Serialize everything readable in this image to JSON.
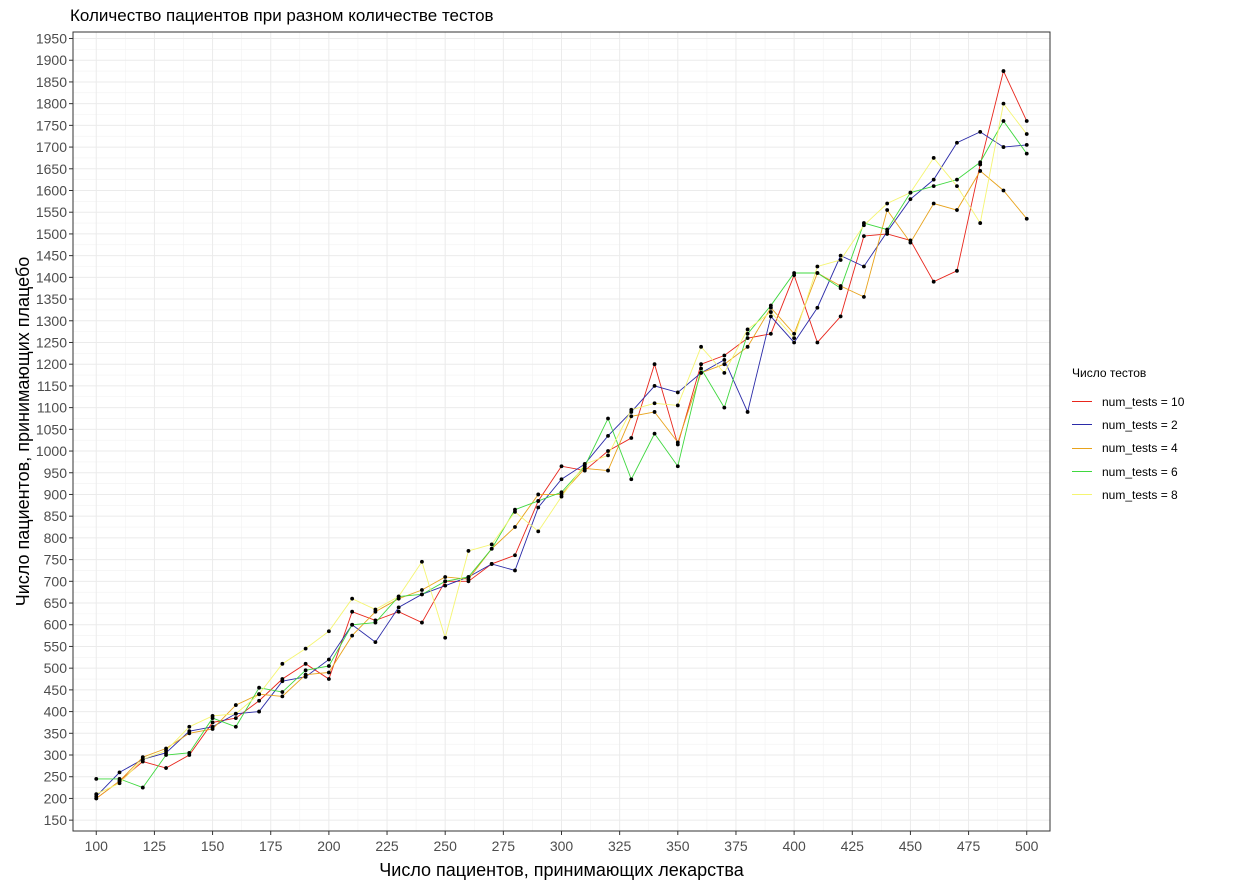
{
  "chart_data": {
    "type": "line",
    "title": "Количество пациентов при разном количестве тестов",
    "xlabel": "Число пациентов, принимающих лекарства",
    "ylabel": "Число пациентов, принимающих плацебо",
    "xlim": [
      90,
      510
    ],
    "ylim": [
      125,
      1965
    ],
    "x_ticks": [
      100,
      125,
      150,
      175,
      200,
      225,
      250,
      275,
      300,
      325,
      350,
      375,
      400,
      425,
      450,
      475,
      500
    ],
    "y_ticks": [
      150,
      200,
      250,
      300,
      350,
      400,
      450,
      500,
      550,
      600,
      650,
      700,
      750,
      800,
      850,
      900,
      950,
      1000,
      1050,
      1100,
      1150,
      1200,
      1250,
      1300,
      1350,
      1400,
      1450,
      1500,
      1550,
      1600,
      1650,
      1700,
      1750,
      1800,
      1850,
      1900,
      1950
    ],
    "grid": true,
    "legend_title": "Число тестов",
    "legend_position": "right",
    "point_color": "#000000",
    "x": [
      100,
      110,
      120,
      130,
      140,
      150,
      160,
      170,
      180,
      190,
      200,
      210,
      220,
      230,
      240,
      250,
      260,
      270,
      280,
      290,
      300,
      310,
      320,
      330,
      340,
      350,
      360,
      370,
      380,
      390,
      400,
      410,
      420,
      430,
      440,
      450,
      460,
      470,
      480,
      490,
      500
    ],
    "series": [
      {
        "name": "num_tests = 10",
        "color": "#e8261c",
        "values": [
          200,
          240,
          285,
          270,
          300,
          375,
          385,
          425,
          475,
          510,
          475,
          630,
          610,
          630,
          605,
          700,
          700,
          740,
          760,
          885,
          965,
          955,
          1000,
          1030,
          1200,
          1015,
          1200,
          1220,
          1260,
          1270,
          1405,
          1250,
          1310,
          1495,
          1500,
          1485,
          1390,
          1415,
          1660,
          1875,
          1760
        ]
      },
      {
        "name": "num_tests = 2",
        "color": "#2b2ba8",
        "values": [
          205,
          260,
          290,
          305,
          355,
          365,
          395,
          400,
          470,
          480,
          520,
          600,
          560,
          640,
          670,
          690,
          710,
          740,
          725,
          870,
          935,
          970,
          1035,
          1090,
          1150,
          1135,
          1180,
          1210,
          1090,
          1310,
          1250,
          1330,
          1450,
          1425,
          1505,
          1580,
          1625,
          1710,
          1735,
          1700,
          1705
        ]
      },
      {
        "name": "num_tests = 4",
        "color": "#e8a31c",
        "values": [
          200,
          240,
          295,
          315,
          350,
          360,
          415,
          440,
          435,
          485,
          490,
          575,
          630,
          660,
          680,
          710,
          705,
          775,
          825,
          900,
          900,
          960,
          955,
          1080,
          1090,
          1020,
          1180,
          1200,
          1240,
          1330,
          1270,
          1410,
          1380,
          1355,
          1555,
          1480,
          1570,
          1555,
          1645,
          1600,
          1535
        ]
      },
      {
        "name": "num_tests = 6",
        "color": "#3fd83f",
        "values": [
          245,
          245,
          225,
          300,
          305,
          385,
          365,
          455,
          445,
          495,
          505,
          600,
          605,
          665,
          670,
          700,
          710,
          775,
          865,
          885,
          905,
          965,
          1075,
          935,
          1040,
          965,
          1190,
          1100,
          1270,
          1335,
          1410,
          1410,
          1375,
          1525,
          1510,
          1595,
          1610,
          1625,
          1665,
          1760,
          1685
        ]
      },
      {
        "name": "num_tests = 8",
        "color": "#f5f571",
        "values": [
          210,
          235,
          290,
          310,
          365,
          390,
          395,
          440,
          510,
          545,
          585,
          660,
          635,
          665,
          745,
          570,
          770,
          785,
          860,
          815,
          895,
          970,
          990,
          1095,
          1110,
          1105,
          1240,
          1180,
          1280,
          1320,
          1260,
          1425,
          1440,
          1520,
          1570,
          1595,
          1675,
          1610,
          1525,
          1800,
          1730
        ]
      }
    ]
  }
}
